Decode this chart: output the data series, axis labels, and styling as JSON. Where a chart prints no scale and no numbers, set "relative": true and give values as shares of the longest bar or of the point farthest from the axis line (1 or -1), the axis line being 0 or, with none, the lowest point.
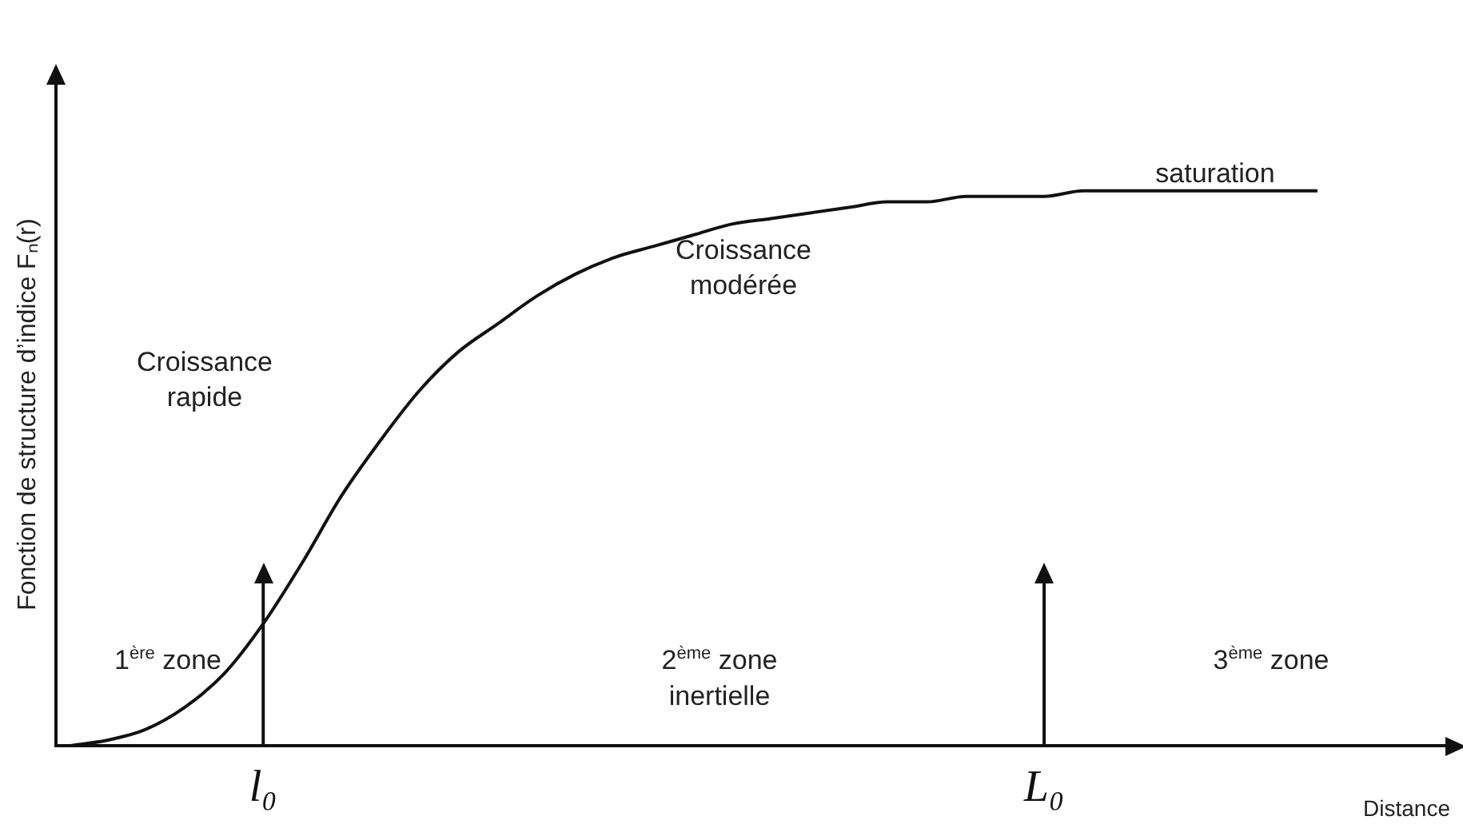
{
  "chart_data": {
    "type": "line",
    "relative": true,
    "legend": false,
    "grid": false,
    "xlabel": "Distance",
    "ylabel": "Fonction de structure d’indice Fₙ(r)",
    "categories": [
      null,
      null,
      null,
      null,
      null,
      "l₀",
      null,
      null,
      null,
      null,
      null,
      null,
      null,
      null,
      null,
      null,
      null,
      null,
      null,
      null,
      null,
      null,
      null,
      null,
      null,
      "L₀",
      null,
      null,
      null,
      null,
      null,
      null,
      null
    ],
    "values": [
      0,
      0.01,
      0.03,
      0.07,
      0.13,
      0.22,
      0.33,
      0.45,
      0.55,
      0.64,
      0.71,
      0.76,
      0.81,
      0.85,
      0.88,
      0.9,
      0.92,
      0.94,
      0.95,
      0.96,
      0.97,
      0.98,
      0.98,
      0.99,
      0.99,
      0.99,
      1,
      1,
      1,
      1,
      1,
      1,
      1
    ],
    "color": "#111111",
    "ref_lines": [
      {
        "axis": "x",
        "value": "l₀"
      },
      {
        "axis": "x",
        "value": "L₀"
      }
    ],
    "annotations": [
      "Croissance rapide",
      "Croissance modérée",
      "saturation",
      "1$^{ère}$ zone",
      "2$^{ème}$ zone inertielle",
      "3$^{ème}$ zone"
    ]
  }
}
